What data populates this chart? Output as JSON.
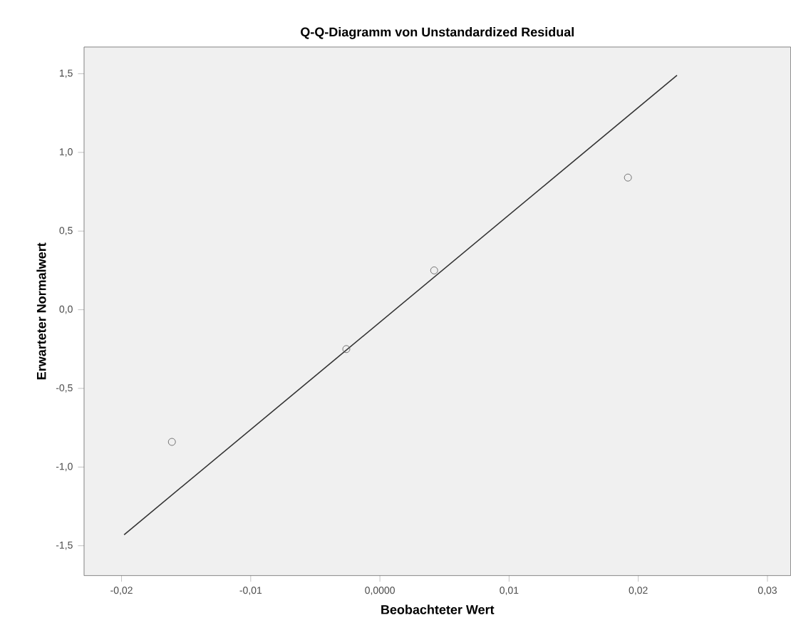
{
  "chart_data": {
    "type": "scatter",
    "title": "Q-Q-Diagramm von Unstandardized Residual",
    "xlabel": "Beobachteter Wert",
    "ylabel": "Erwarteter Normalwert",
    "xlim": [
      -0.0229,
      0.0318
    ],
    "ylim": [
      -1.69,
      1.67
    ],
    "xticks": [
      {
        "value": -0.02,
        "label": "-0,02"
      },
      {
        "value": -0.01,
        "label": "-0,01"
      },
      {
        "value": 0,
        "label": "0,0000"
      },
      {
        "value": 0.01,
        "label": "0,01"
      },
      {
        "value": 0.02,
        "label": "0,02"
      },
      {
        "value": 0.03,
        "label": "0,03"
      }
    ],
    "yticks": [
      {
        "value": -1.5,
        "label": "-1,5"
      },
      {
        "value": -1.0,
        "label": "-1,0"
      },
      {
        "value": -0.5,
        "label": "-0,5"
      },
      {
        "value": 0.0,
        "label": "0,0"
      },
      {
        "value": 0.5,
        "label": "0,5"
      },
      {
        "value": 1.0,
        "label": "1,0"
      },
      {
        "value": 1.5,
        "label": "1,5"
      }
    ],
    "grid": false,
    "marker": "circle",
    "series": [
      {
        "color": "#555555",
        "x": [
          -0.0161,
          -0.0026,
          0.0042,
          0.0192
        ],
        "values": [
          -0.84,
          -0.25,
          0.25,
          0.84
        ]
      },
      {
        "type": "line",
        "color": "#333333",
        "marker": "none",
        "x": [
          -0.0198,
          0.023
        ],
        "values": [
          -1.43,
          1.49
        ]
      }
    ]
  }
}
